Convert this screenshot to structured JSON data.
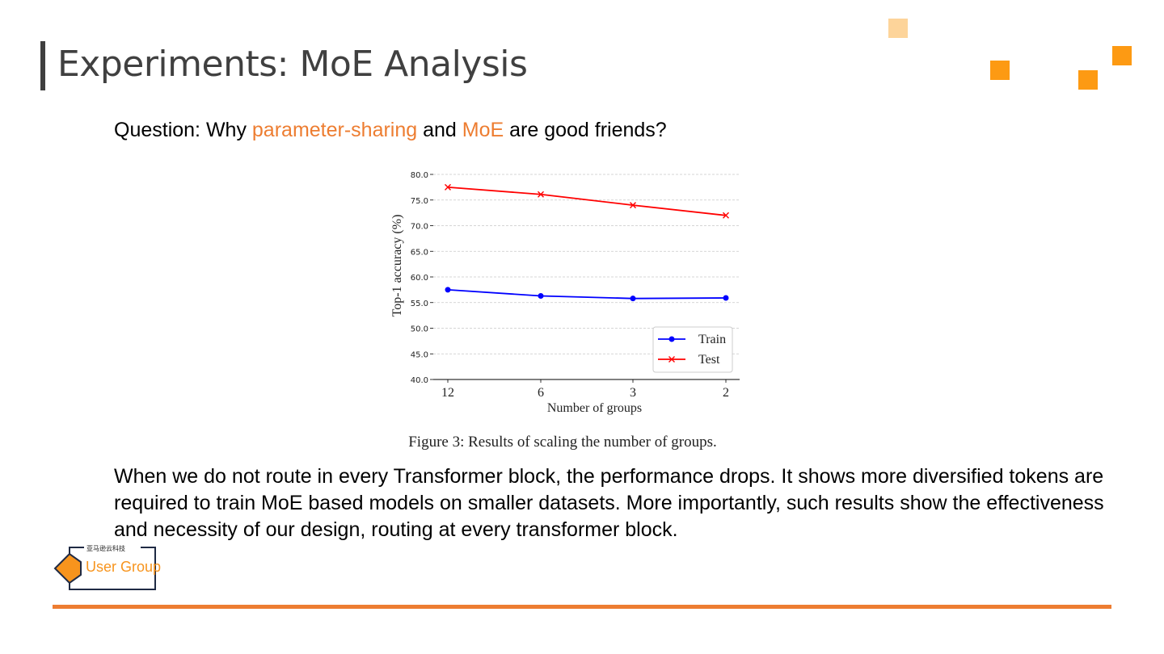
{
  "title": "Experiments: MoE Analysis",
  "question": {
    "prefix": "Question: Why ",
    "highlight1": "parameter-sharing",
    "middle": " and ",
    "highlight2": "MoE",
    "suffix": " are good friends?"
  },
  "caption": "Figure 3: Results of scaling the number of groups.",
  "body": "When we do not route in every Transformer block, the performance drops. It shows more diversified tokens are required to train MoE based models on smaller datasets. More importantly, such results show the effectiveness and necessity of our design, routing at every transformer block.",
  "logo": {
    "cn_text": "亚马逊云科技",
    "text": "User Group"
  },
  "colors": {
    "accent": "#ed7d31",
    "title": "#404040",
    "square_orange": "#fd9a13",
    "square_light": "#fdd49a"
  },
  "chart_data": {
    "type": "line",
    "categories": [
      "12",
      "6",
      "3",
      "2"
    ],
    "series": [
      {
        "name": "Train",
        "values": [
          57.5,
          56.3,
          55.8,
          55.9
        ],
        "color": "#0000ff",
        "marker": "circle"
      },
      {
        "name": "Test",
        "values": [
          77.5,
          76.1,
          74.0,
          72.0
        ],
        "color": "#ff0000",
        "marker": "x"
      }
    ],
    "xlabel": "Number of groups",
    "ylabel": "Top-1 accuracy (%)",
    "ylim": [
      40,
      80
    ],
    "yticks": [
      "40.0",
      "45.0",
      "50.0",
      "55.0",
      "60.0",
      "65.0",
      "70.0",
      "75.0",
      "80.0"
    ],
    "grid": true,
    "legend_position": "bottom-right"
  }
}
